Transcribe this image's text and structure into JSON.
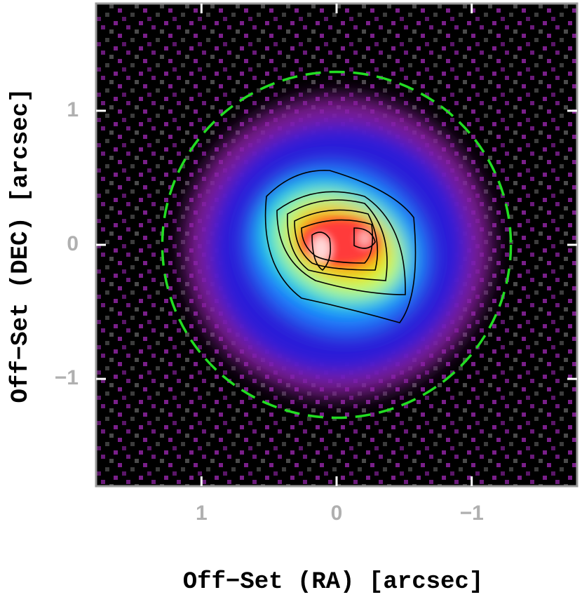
{
  "chart_data": {
    "type": "image",
    "x_label": "Off−Set (RA) [arcsec]",
    "y_label": "Off−Set (DEC) [arcsec]",
    "xlim": [
      1.78,
      -1.78
    ],
    "ylim": [
      -1.8,
      1.8
    ],
    "xticks": [
      1,
      0,
      {
        "value": -1,
        "label": "−1"
      }
    ],
    "yticks": [
      {
        "value": -1,
        "label": "−1"
      },
      0,
      1
    ],
    "circle": {
      "x": 0,
      "y": 0,
      "r": 1.29,
      "color": "#22dd22"
    }
  }
}
